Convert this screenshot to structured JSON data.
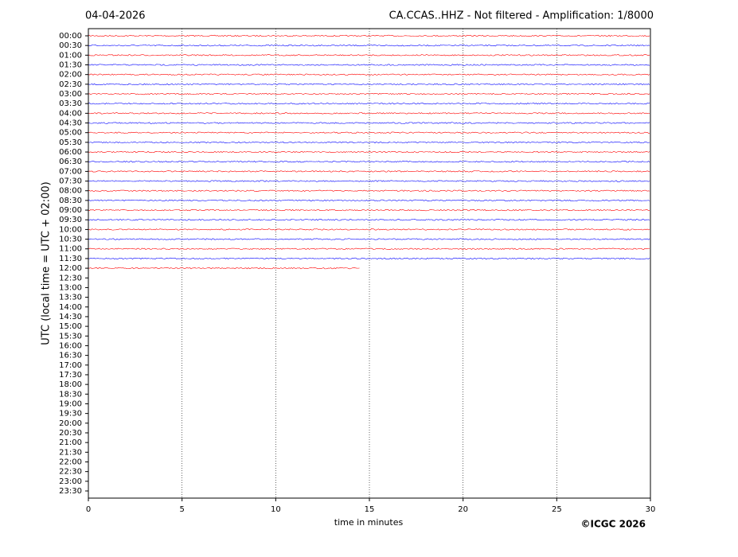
{
  "chart_data": {
    "type": "helicorder",
    "title_left": "04-04-2026",
    "title": "CA.CCAS..HHZ - Not filtered - Amplification: 1/8000",
    "ylabel": "UTC (local time = UTC + 02:00)",
    "xlabel": "time in minutes",
    "footer": "©ICGC 2026",
    "categories": [
      "00:00",
      "00:30",
      "01:00",
      "01:30",
      "02:00",
      "02:30",
      "03:00",
      "03:30",
      "04:00",
      "04:30",
      "05:00",
      "05:30",
      "06:00",
      "06:30",
      "07:00",
      "07:30",
      "08:00",
      "08:30",
      "09:00",
      "09:30",
      "10:00",
      "10:30",
      "11:00",
      "11:30",
      "12:00",
      "12:30",
      "13:00",
      "13:30",
      "14:00",
      "14:30",
      "15:00",
      "15:30",
      "16:00",
      "16:30",
      "17:00",
      "17:30",
      "18:00",
      "18:30",
      "19:00",
      "19:30",
      "20:00",
      "20:30",
      "21:00",
      "21:30",
      "22:00",
      "22:30",
      "23:00",
      "23:30"
    ],
    "values": [
      30,
      30,
      30,
      30,
      30,
      30,
      30,
      30,
      30,
      30,
      30,
      30,
      30,
      30,
      30,
      30,
      30,
      30,
      30,
      30,
      30,
      30,
      30,
      30,
      14.5,
      null,
      null,
      null,
      null,
      null,
      null,
      null,
      null,
      null,
      null,
      null,
      null,
      null,
      null,
      null,
      null,
      null,
      null,
      null,
      null,
      null,
      null,
      null
    ],
    "colors": [
      "#ff0000",
      "#0000ff"
    ],
    "xlim": [
      0,
      30
    ],
    "xticks": [
      0,
      5,
      10,
      15,
      20,
      25,
      30
    ],
    "grid": true
  }
}
